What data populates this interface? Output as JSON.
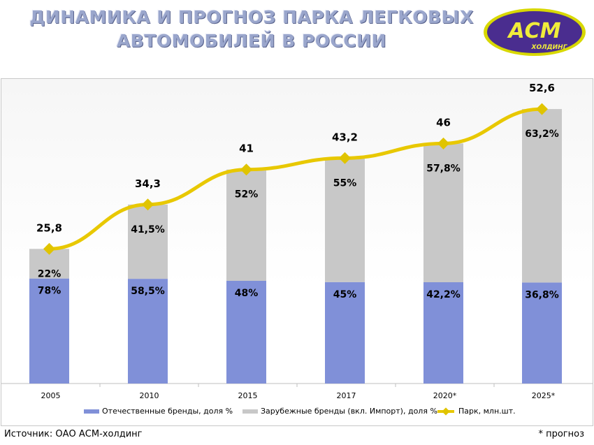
{
  "title_line1": "ДИНАМИКА И ПРОГНОЗ ПАРКА ЛЕГКОВЫХ",
  "title_line2": "АВТОМОБИЛЕЙ В РОССИИ",
  "logo": {
    "mark": "АСМ",
    "sub": "ХОЛДИНГ",
    "bg_color": "#4a2d8f",
    "ring_color": "#d8d800",
    "text_color": "#f0ec3a"
  },
  "source": "Источник: ОАО АСМ-холдинг",
  "note": "* прогноз",
  "colors": {
    "domestic": "#8090d8",
    "foreign": "#c8c8c8",
    "park": "#e8c800",
    "marker": "#e0c400"
  },
  "chart_data": {
    "type": "bar",
    "stacked": true,
    "categories": [
      "2005",
      "2010",
      "2015",
      "2017",
      "2020*",
      "2025*"
    ],
    "series": [
      {
        "name": "Отечественные бренды, доля %",
        "values": [
          78,
          58.5,
          48,
          45,
          42.2,
          36.8
        ],
        "labels": [
          "78%",
          "58,5%",
          "48%",
          "45%",
          "42,2%",
          "36,8%"
        ]
      },
      {
        "name": "Зарубежные бренды (вкл. Импорт), доля %",
        "values": [
          22,
          41.5,
          52,
          55,
          57.8,
          63.2
        ],
        "labels": [
          "22%",
          "41,5%",
          "52%",
          "55%",
          "57,8%",
          "63,2%"
        ]
      }
    ],
    "line_series": {
      "name": "Парк, млн.шт.",
      "values": [
        25.8,
        34.3,
        41,
        43.2,
        46,
        52.6
      ],
      "labels": [
        "25,8",
        "34,3",
        "41",
        "43,2",
        "46",
        "52,6"
      ]
    },
    "legend_position": "bottom",
    "grid": false
  }
}
